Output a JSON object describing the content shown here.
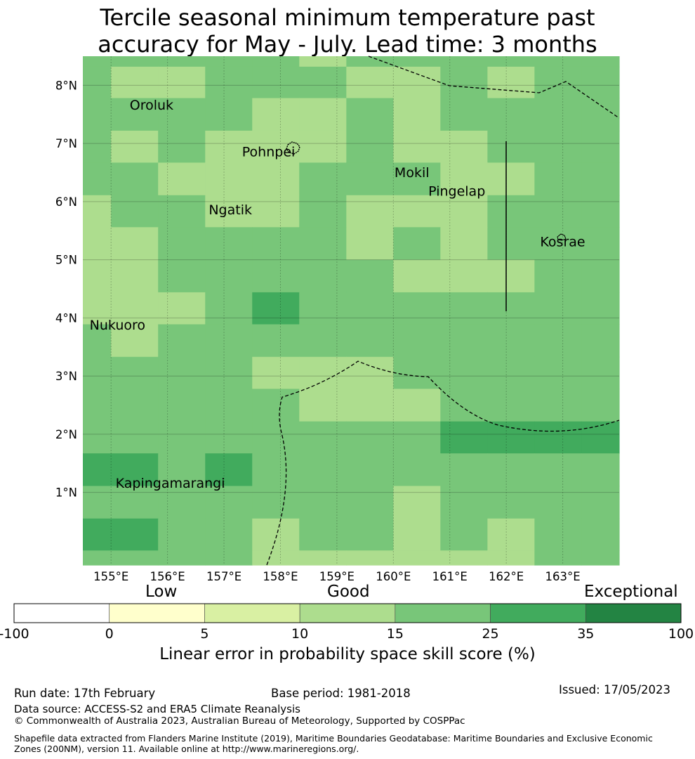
{
  "title": {
    "line1": "Tercile seasonal minimum temperature past",
    "line2": "accuracy for May - July. Lead time: 3 months"
  },
  "map": {
    "lat_labels": [
      "8°N",
      "7°N",
      "6°N",
      "5°N",
      "4°N",
      "3°N",
      "2°N",
      "1°N"
    ],
    "lon_labels": [
      "155°E",
      "156°E",
      "157°E",
      "158°E",
      "159°E",
      "160°E",
      "161°E",
      "162°E",
      "163°E"
    ],
    "lon_range": [
      154.5,
      164.0
    ],
    "lat_range": [
      -0.25,
      8.5
    ],
    "places": [
      {
        "name": "Oroluk",
        "lon": 155.33,
        "lat": 7.58
      },
      {
        "name": "Pohnpei",
        "lon": 157.32,
        "lat": 6.78
      },
      {
        "name": "Mokil",
        "lon": 160.02,
        "lat": 6.42
      },
      {
        "name": "Pingelap",
        "lon": 160.62,
        "lat": 6.1
      },
      {
        "name": "Ngatik",
        "lon": 156.73,
        "lat": 5.78
      },
      {
        "name": "Kosrae",
        "lon": 162.6,
        "lat": 5.23
      },
      {
        "name": "Nukuoro",
        "lon": 154.62,
        "lat": 3.8
      },
      {
        "name": "Kapingamarangi",
        "lon": 155.08,
        "lat": 1.08
      }
    ],
    "grid_lon_edges": [
      154.5,
      155.0,
      155.833,
      156.667,
      157.5,
      158.333,
      159.167,
      160.0,
      160.833,
      161.667,
      162.5,
      163.333,
      164.0
    ],
    "grid_lat_edges": [
      8.5,
      8.32,
      7.78,
      7.22,
      6.67,
      6.11,
      5.56,
      5.0,
      4.44,
      3.89,
      3.33,
      2.78,
      2.22,
      1.67,
      1.11,
      0.55,
      0.0,
      -0.25
    ],
    "grid_classes": [
      [
        4,
        4,
        4,
        4,
        4,
        3,
        4,
        4,
        4,
        4,
        4,
        4
      ],
      [
        4,
        3,
        3,
        4,
        4,
        4,
        3,
        3,
        4,
        3,
        4,
        4
      ],
      [
        4,
        4,
        4,
        4,
        3,
        3,
        4,
        3,
        4,
        4,
        4,
        4
      ],
      [
        4,
        3,
        4,
        3,
        3,
        3,
        4,
        3,
        3,
        4,
        4,
        4
      ],
      [
        4,
        4,
        3,
        3,
        3,
        4,
        4,
        4,
        3,
        3,
        4,
        4
      ],
      [
        3,
        4,
        4,
        3,
        3,
        4,
        3,
        3,
        3,
        4,
        4,
        4
      ],
      [
        3,
        3,
        4,
        4,
        4,
        4,
        3,
        4,
        3,
        4,
        4,
        4
      ],
      [
        3,
        3,
        4,
        4,
        4,
        4,
        4,
        3,
        3,
        3,
        4,
        4
      ],
      [
        3,
        3,
        3,
        4,
        5,
        4,
        4,
        4,
        4,
        4,
        4,
        4
      ],
      [
        4,
        3,
        4,
        4,
        4,
        4,
        4,
        4,
        4,
        4,
        4,
        4
      ],
      [
        4,
        4,
        4,
        4,
        3,
        3,
        3,
        4,
        4,
        4,
        4,
        4
      ],
      [
        4,
        4,
        4,
        4,
        4,
        3,
        3,
        3,
        4,
        4,
        4,
        4
      ],
      [
        4,
        4,
        4,
        4,
        4,
        4,
        4,
        4,
        5,
        5,
        5,
        5
      ],
      [
        5,
        5,
        4,
        5,
        4,
        4,
        4,
        4,
        4,
        4,
        4,
        4
      ],
      [
        4,
        4,
        4,
        4,
        4,
        4,
        4,
        3,
        4,
        4,
        4,
        4
      ],
      [
        5,
        5,
        4,
        4,
        3,
        4,
        4,
        3,
        4,
        3,
        4,
        4
      ],
      [
        4,
        4,
        4,
        4,
        3,
        3,
        3,
        3,
        3,
        3,
        4,
        4
      ]
    ]
  },
  "colorbar": {
    "categories": [
      "Low",
      "Good",
      "Exceptional"
    ],
    "tick_labels": [
      "-100",
      "0",
      "5",
      "10",
      "15",
      "25",
      "35",
      "100"
    ],
    "colors": [
      "#ffffff",
      "#ffffcc",
      "#d9f0a3",
      "#addd8e",
      "#78c679",
      "#41ab5d",
      "#238443"
    ],
    "label": "Linear error in probability space skill score (%)"
  },
  "footer": {
    "run_date": "Run date: 17th February",
    "base_period": "Base period: 1981-2018",
    "issued": "Issued: 17/05/2023",
    "data_source": "Data source: ACCESS-S2 and ERA5 Climate Reanalysis",
    "copyright": "© Commonwealth of Australia 2023, Australian Bureau of Meteorology, Supported by COSPPac",
    "shapefile": "Shapefile data extracted from Flanders Marine Institute (2019), Maritime Boundaries Geodatabase: Maritime Boundaries and Exclusive Economic Zones (200NM), version 11. Available online at http://www.marineregions.org/."
  }
}
